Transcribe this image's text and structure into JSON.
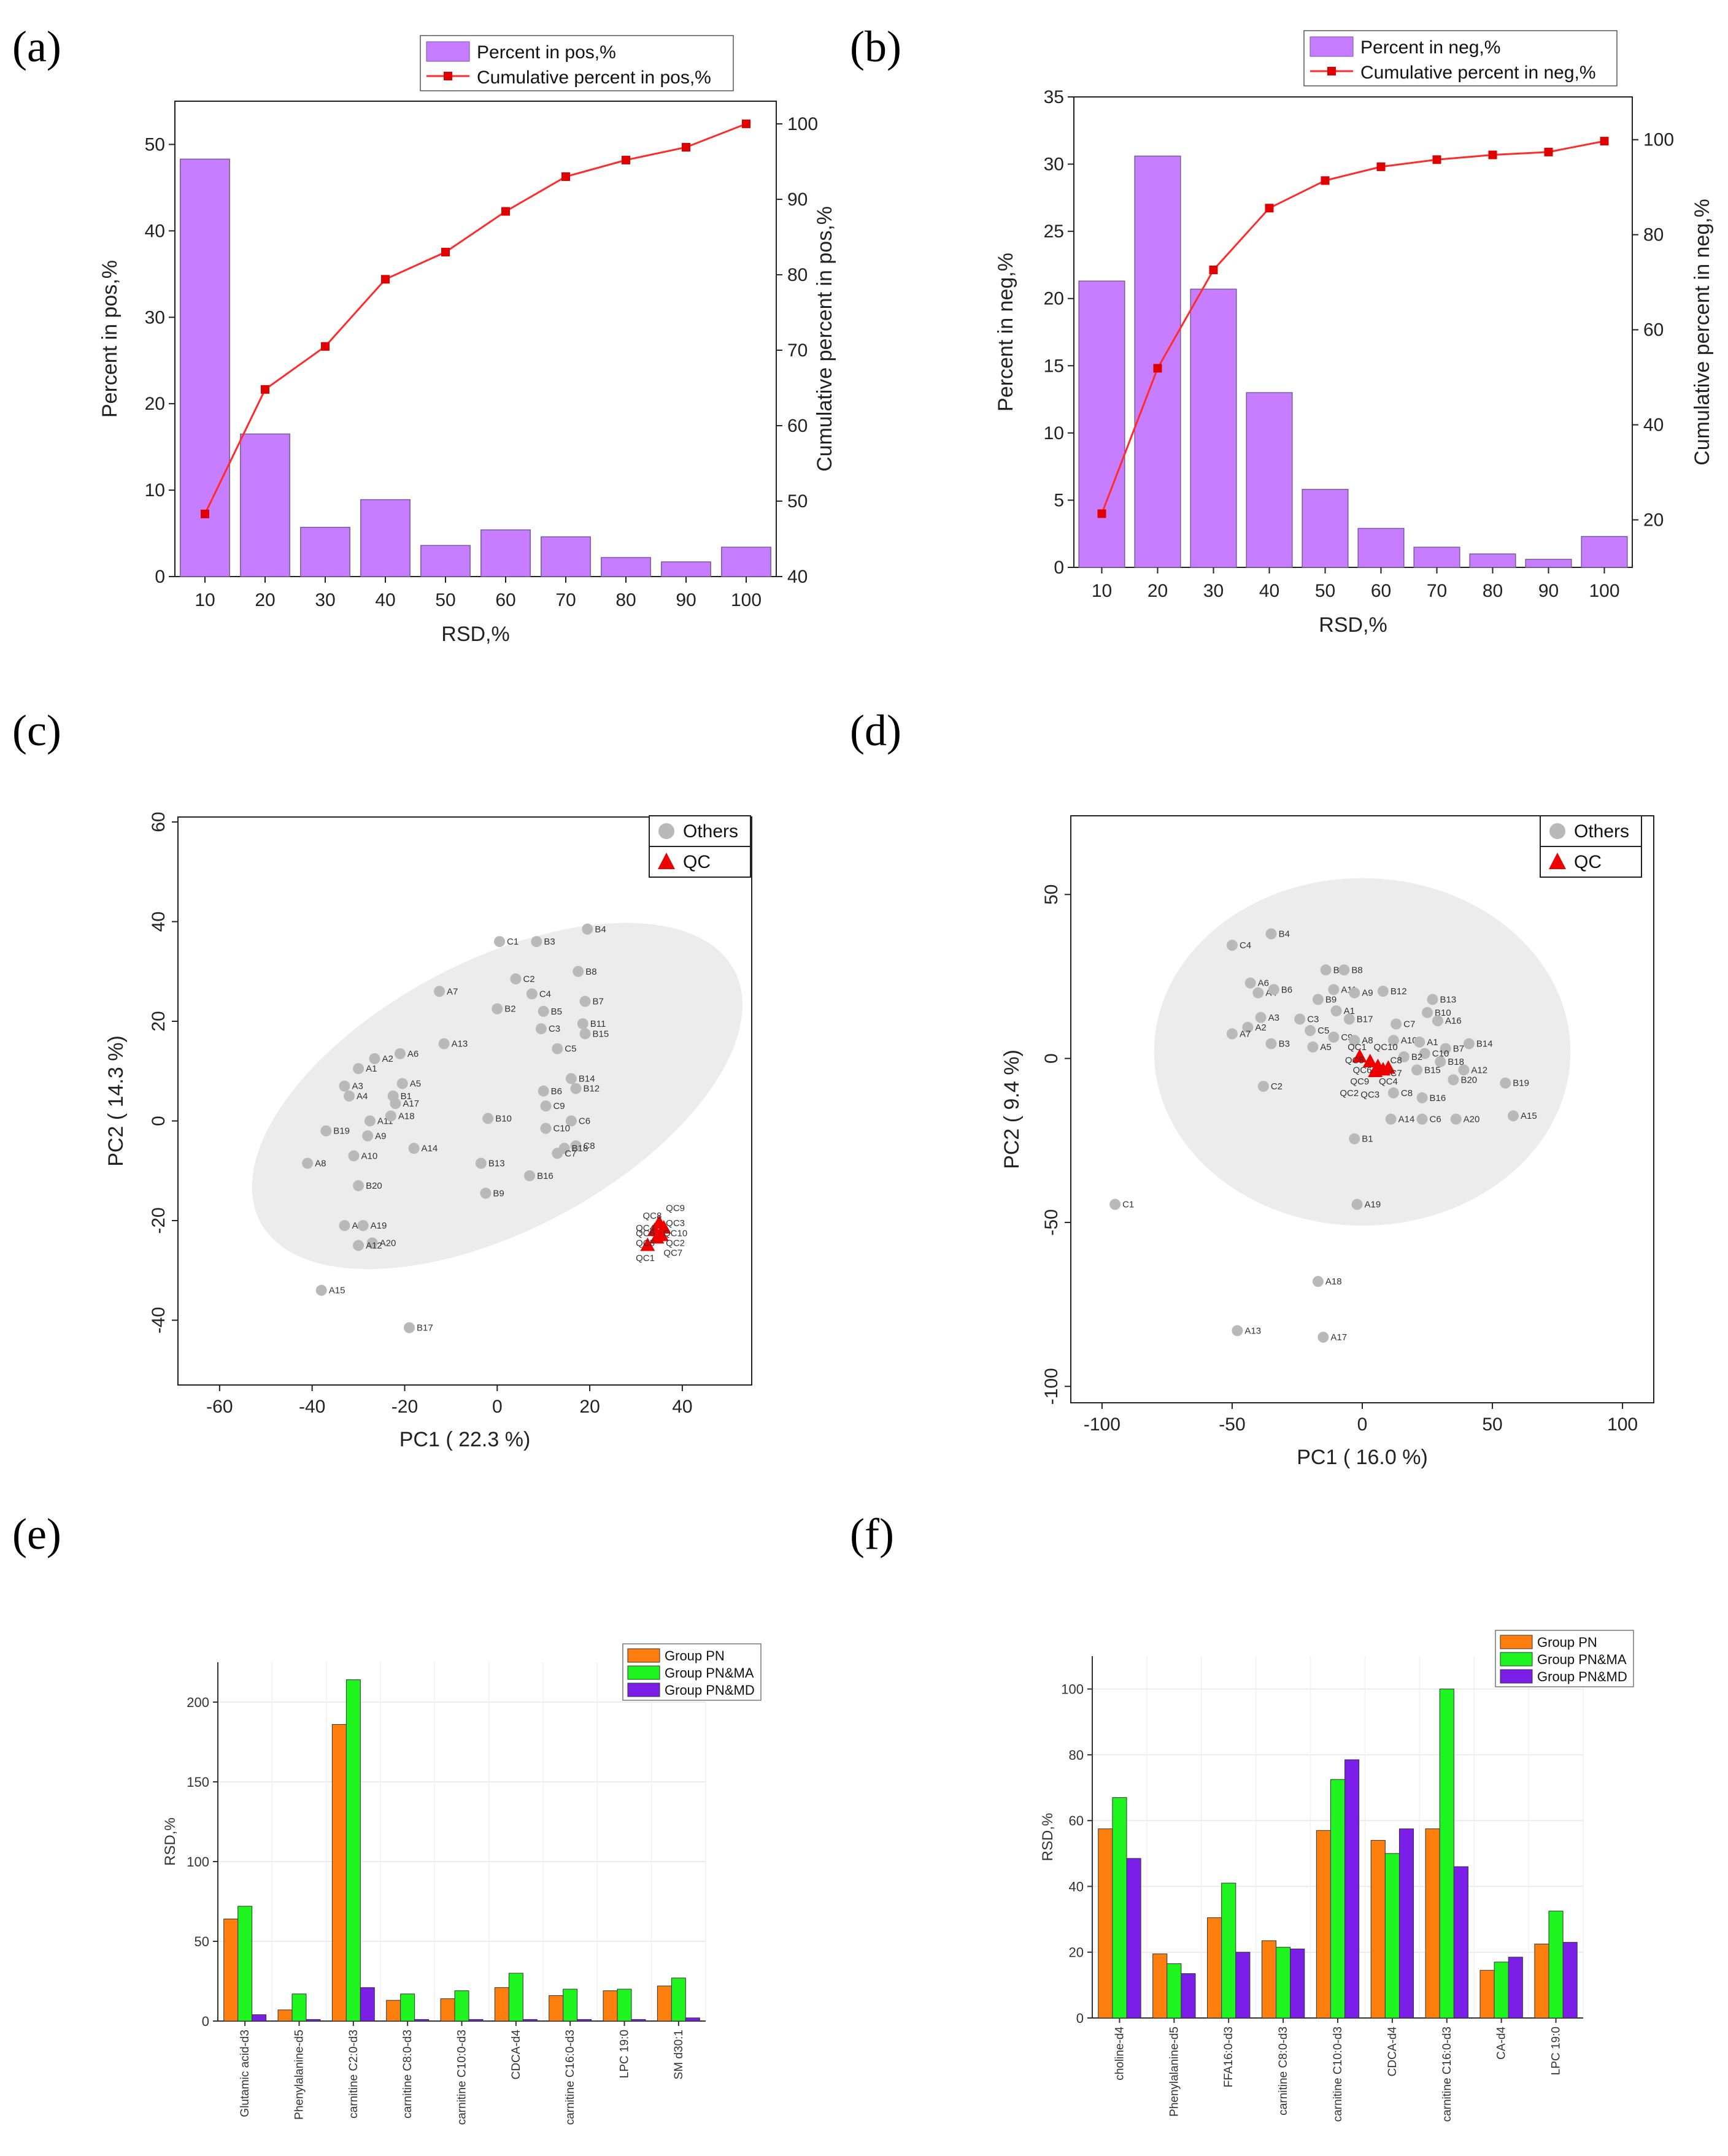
{
  "panel_labels": [
    "(a)",
    "(b)",
    "(c)",
    "(d)",
    "(e)",
    "(f)"
  ],
  "chart_data": [
    {
      "id": "a",
      "type": "bar",
      "categories": [
        "10",
        "20",
        "30",
        "40",
        "50",
        "60",
        "70",
        "80",
        "90",
        "100"
      ],
      "series": [
        {
          "name": "Percent in pos,%",
          "kind": "bar",
          "axis": "left",
          "color": "#c77dff",
          "values": [
            48.3,
            16.5,
            5.7,
            8.9,
            3.6,
            5.4,
            4.6,
            2.2,
            1.7,
            3.4
          ]
        },
        {
          "name": "Cumulative percent in pos,%",
          "kind": "line",
          "axis": "right",
          "color": "#ff2b2b",
          "values": [
            48.3,
            64.8,
            70.5,
            79.4,
            83.0,
            88.4,
            93.0,
            95.2,
            96.9,
            100
          ]
        }
      ],
      "xlabel": "RSD,%",
      "ylabel": "Percent in pos,%",
      "y2label": "Cumulative percent in pos,%",
      "ylim": [
        0,
        55
      ],
      "yticks": [
        0,
        10,
        20,
        30,
        40,
        50
      ],
      "y2lim": [
        40,
        103
      ],
      "y2ticks": [
        40,
        50,
        60,
        70,
        80,
        90,
        100
      ],
      "legend": "top-right"
    },
    {
      "id": "b",
      "type": "bar",
      "categories": [
        "10",
        "20",
        "30",
        "40",
        "50",
        "60",
        "70",
        "80",
        "90",
        "100"
      ],
      "series": [
        {
          "name": "Percent in neg,%",
          "kind": "bar",
          "axis": "left",
          "color": "#c77dff",
          "values": [
            21.3,
            30.6,
            20.7,
            13.0,
            5.8,
            2.9,
            1.5,
            1.0,
            0.6,
            2.3
          ]
        },
        {
          "name": "Cumulative percent in neg,%",
          "kind": "line",
          "axis": "right",
          "color": "#ff2b2b",
          "values": [
            21.3,
            51.9,
            72.6,
            85.6,
            91.4,
            94.3,
            95.8,
            96.8,
            97.4,
            99.7
          ]
        }
      ],
      "xlabel": "RSD,%",
      "ylabel": "Percent in neg,%",
      "y2label": "Cumulative percent in neg,%",
      "ylim": [
        0,
        35
      ],
      "yticks": [
        0,
        5,
        10,
        15,
        20,
        25,
        30,
        35
      ],
      "y2lim": [
        10,
        109
      ],
      "y2ticks": [
        20,
        40,
        60,
        80,
        100
      ],
      "legend": "top-right"
    },
    {
      "id": "c",
      "type": "scatter",
      "xlabel": "PC1 ( 22.3 %)",
      "ylabel": "PC2 ( 14.3 %)",
      "xlim": [
        -69,
        55
      ],
      "xticks": [
        -60,
        -40,
        -20,
        0,
        20,
        40
      ],
      "ylim": [
        -53,
        61
      ],
      "yticks": [
        -40,
        -20,
        0,
        20,
        40,
        60
      ],
      "legend_entries": [
        "Others",
        "QC"
      ],
      "ellipse": {
        "cx": 0,
        "cy": 5,
        "rx": 58,
        "ry": 27,
        "angle_deg": 28
      },
      "others": [
        {
          "label": "B4",
          "x": 19.5,
          "y": 38.5
        },
        {
          "label": "C1",
          "x": 0.5,
          "y": 36
        },
        {
          "label": "B3",
          "x": 8.5,
          "y": 36
        },
        {
          "label": "B8",
          "x": 17.5,
          "y": 30
        },
        {
          "label": "C2",
          "x": 4,
          "y": 28.5
        },
        {
          "label": "A7",
          "x": -12.5,
          "y": 26
        },
        {
          "label": "C4",
          "x": 7.5,
          "y": 25.5
        },
        {
          "label": "B7",
          "x": 19,
          "y": 24
        },
        {
          "label": "B2",
          "x": 0,
          "y": 22.5
        },
        {
          "label": "B5",
          "x": 10,
          "y": 22
        },
        {
          "label": "A13",
          "x": -11.5,
          "y": 15.5
        },
        {
          "label": "B11",
          "x": 18.5,
          "y": 19.5
        },
        {
          "label": "C3",
          "x": 9.5,
          "y": 18.5
        },
        {
          "label": "B15",
          "x": 19,
          "y": 17.5
        },
        {
          "label": "C5",
          "x": 13,
          "y": 14.5
        },
        {
          "label": "A2",
          "x": -26.5,
          "y": 12.5
        },
        {
          "label": "A6",
          "x": -21,
          "y": 13.5
        },
        {
          "label": "A1",
          "x": -30,
          "y": 10.5
        },
        {
          "label": "A3",
          "x": -33,
          "y": 7
        },
        {
          "label": "A5",
          "x": -20.5,
          "y": 7.5
        },
        {
          "label": "B14",
          "x": 16,
          "y": 8.5
        },
        {
          "label": "B6",
          "x": 10,
          "y": 6
        },
        {
          "label": "B12",
          "x": 17,
          "y": 6.5
        },
        {
          "label": "B1",
          "x": -22.5,
          "y": 5
        },
        {
          "label": "A4",
          "x": -32,
          "y": 5
        },
        {
          "label": "A17",
          "x": -22,
          "y": 3.5
        },
        {
          "label": "C9",
          "x": 10.5,
          "y": 3
        },
        {
          "label": "A11",
          "x": -27.5,
          "y": 0
        },
        {
          "label": "A18",
          "x": -23,
          "y": 1
        },
        {
          "label": "B10",
          "x": -2,
          "y": 0.5
        },
        {
          "label": "C6",
          "x": 16,
          "y": 0
        },
        {
          "label": "B19",
          "x": -37,
          "y": -2
        },
        {
          "label": "A9",
          "x": -28,
          "y": -3
        },
        {
          "label": "C10",
          "x": 10.5,
          "y": -1.5
        },
        {
          "label": "C8",
          "x": 17,
          "y": -5
        },
        {
          "label": "A14",
          "x": -18,
          "y": -5.5
        },
        {
          "label": "B18",
          "x": 14.5,
          "y": -5.5
        },
        {
          "label": "C7",
          "x": 13,
          "y": -6.5
        },
        {
          "label": "A10",
          "x": -31,
          "y": -7
        },
        {
          "label": "A8",
          "x": -41,
          "y": -8.5
        },
        {
          "label": "B13",
          "x": -3.5,
          "y": -8.5
        },
        {
          "label": "B16",
          "x": 7,
          "y": -11
        },
        {
          "label": "B20",
          "x": -30,
          "y": -13
        },
        {
          "label": "B9",
          "x": -2.5,
          "y": -14.5
        },
        {
          "label": "A16",
          "x": -33,
          "y": -21
        },
        {
          "label": "A19",
          "x": -29,
          "y": -21
        },
        {
          "label": "A20",
          "x": -27,
          "y": -24.5
        },
        {
          "label": "A12",
          "x": -30,
          "y": -25
        },
        {
          "label": "A15",
          "x": -38,
          "y": -34
        },
        {
          "label": "B17",
          "x": -19,
          "y": -41.5
        }
      ],
      "qc": [
        {
          "label": "QC9",
          "x": 38.5,
          "y": -17.5
        },
        {
          "label": "QC8",
          "x": 33.5,
          "y": -19
        },
        {
          "label": "QC3",
          "x": 38.5,
          "y": -20.5
        },
        {
          "label": "QC4",
          "x": 32,
          "y": -21.5
        },
        {
          "label": "QC6",
          "x": 32,
          "y": -22.5
        },
        {
          "label": "QC10",
          "x": 38.5,
          "y": -22.5
        },
        {
          "label": "QC5",
          "x": 32,
          "y": -24.5
        },
        {
          "label": "QC2",
          "x": 38.5,
          "y": -24.5
        },
        {
          "label": "QC7",
          "x": 38,
          "y": -26.5
        },
        {
          "label": "QC1",
          "x": 32,
          "y": -27.5
        }
      ],
      "qc_points": [
        [
          32.5,
          -25
        ],
        [
          34,
          -22
        ],
        [
          35,
          -20.5
        ],
        [
          35.5,
          -23
        ],
        [
          36,
          -21.5
        ],
        [
          34.5,
          -23.5
        ]
      ]
    },
    {
      "id": "d",
      "type": "scatter",
      "xlabel": "PC1 ( 16.0 %)",
      "ylabel": "PC2 ( 9.4 %)",
      "xlim": [
        -112,
        112
      ],
      "xticks": [
        -100,
        -50,
        0,
        50,
        100
      ],
      "ylim": [
        -105,
        74
      ],
      "yticks": [
        -100,
        -50,
        0,
        50
      ],
      "legend_entries": [
        "Others",
        "QC"
      ],
      "ellipse": {
        "cx": 0,
        "cy": 2,
        "rx": 80,
        "ry": 53,
        "angle_deg": 0
      },
      "others": [
        {
          "label": "C4",
          "x": -50,
          "y": 34.5
        },
        {
          "label": "B4",
          "x": -35,
          "y": 38
        },
        {
          "label": "B5",
          "x": -14,
          "y": 27
        },
        {
          "label": "B8",
          "x": -7,
          "y": 27
        },
        {
          "label": "A6",
          "x": -43,
          "y": 23
        },
        {
          "label": "A4",
          "x": -40,
          "y": 20
        },
        {
          "label": "B6",
          "x": -34,
          "y": 21
        },
        {
          "label": "A11",
          "x": -11,
          "y": 21
        },
        {
          "label": "A9",
          "x": -3,
          "y": 20
        },
        {
          "label": "B12",
          "x": 8,
          "y": 20.5
        },
        {
          "label": "B9",
          "x": -17,
          "y": 18
        },
        {
          "label": "B13",
          "x": 27,
          "y": 18
        },
        {
          "label": "A1",
          "x": -10,
          "y": 14.5
        },
        {
          "label": "B10",
          "x": 25,
          "y": 14
        },
        {
          "label": "A3",
          "x": -39,
          "y": 12.5
        },
        {
          "label": "C3",
          "x": -24,
          "y": 12
        },
        {
          "label": "B17",
          "x": -5,
          "y": 12
        },
        {
          "label": "A16",
          "x": 29,
          "y": 11.5
        },
        {
          "label": "C7",
          "x": 13,
          "y": 10.5
        },
        {
          "label": "A2",
          "x": -44,
          "y": 9.5
        },
        {
          "label": "C5",
          "x": -20,
          "y": 8.5
        },
        {
          "label": "A7",
          "x": -50,
          "y": 7.5
        },
        {
          "label": "C9",
          "x": -11,
          "y": 6.5
        },
        {
          "label": "A8",
          "x": -3,
          "y": 5.5
        },
        {
          "label": "A10",
          "x": 12,
          "y": 5.5
        },
        {
          "label": "A1",
          "x": 22,
          "y": 5
        },
        {
          "label": "B14",
          "x": 41,
          "y": 4.5
        },
        {
          "label": "B3",
          "x": -35,
          "y": 4.5
        },
        {
          "label": "A5",
          "x": -19,
          "y": 3.5
        },
        {
          "label": "B7",
          "x": 32,
          "y": 3
        },
        {
          "label": "C10",
          "x": 24,
          "y": 1.5
        },
        {
          "label": "B2",
          "x": 16,
          "y": 0.5
        },
        {
          "label": "B18",
          "x": 30,
          "y": -1
        },
        {
          "label": "A12",
          "x": 39,
          "y": -3.5
        },
        {
          "label": "B15",
          "x": 21,
          "y": -3.5
        },
        {
          "label": "B20",
          "x": 35,
          "y": -6.5
        },
        {
          "label": "B19",
          "x": 55,
          "y": -7.5
        },
        {
          "label": "C2",
          "x": -38,
          "y": -8.5
        },
        {
          "label": "C8",
          "x": 12,
          "y": -10.5
        },
        {
          "label": "B16",
          "x": 23,
          "y": -12
        },
        {
          "label": "A15",
          "x": 58,
          "y": -17.5
        },
        {
          "label": "A14",
          "x": 11,
          "y": -18.5
        },
        {
          "label": "C6",
          "x": 23,
          "y": -18.5
        },
        {
          "label": "A20",
          "x": 36,
          "y": -18.5
        },
        {
          "label": "B1",
          "x": -3,
          "y": -24.5
        },
        {
          "label": "C1",
          "x": -95,
          "y": -44.5
        },
        {
          "label": "A19",
          "x": -2,
          "y": -44.5
        },
        {
          "label": "A18",
          "x": -17,
          "y": -68
        },
        {
          "label": "A13",
          "x": -48,
          "y": -83
        },
        {
          "label": "A17",
          "x": -15,
          "y": -85
        }
      ],
      "qc": [
        {
          "label": "QC1",
          "x": -2,
          "y": 3.5
        },
        {
          "label": "QC10",
          "x": 9,
          "y": 3.5
        },
        {
          "label": "QC5",
          "x": -3,
          "y": -0.5
        },
        {
          "label": "C8",
          "x": 13,
          "y": -0.5
        },
        {
          "label": "QC6",
          "x": 0,
          "y": -3.5
        },
        {
          "label": "C7",
          "x": 13,
          "y": -4.5
        },
        {
          "label": "QC9",
          "x": -1,
          "y": -7
        },
        {
          "label": "QC4",
          "x": 10,
          "y": -7
        },
        {
          "label": "QC2",
          "x": -5,
          "y": -10.5
        },
        {
          "label": "QC3",
          "x": 3,
          "y": -11
        }
      ],
      "qc_points": [
        [
          -1,
          0.5
        ],
        [
          3,
          -1
        ],
        [
          6,
          -2.5
        ],
        [
          8,
          -3.5
        ],
        [
          10,
          -3
        ],
        [
          5,
          -4
        ]
      ]
    },
    {
      "id": "e",
      "type": "bar",
      "categories": [
        "Glutamic acid-d3",
        "Phenylalanine-d5",
        "carnitine C2:0-d3",
        "carnitine C8:0-d3",
        "carnitine C10:0-d3",
        "CDCA-d4",
        "carnitine C16:0-d3",
        "LPC 19:0",
        "SM d30:1"
      ],
      "series": [
        {
          "name": "Group PN",
          "color": "#ff7f0e",
          "values": [
            64,
            7,
            186,
            13,
            14,
            21,
            16,
            19,
            22
          ]
        },
        {
          "name": "Group PN&MA",
          "color": "#1ff51f",
          "values": [
            72,
            17,
            214,
            17,
            19,
            30,
            20,
            20,
            27
          ]
        },
        {
          "name": "Group PN&MD",
          "color": "#7b1fe8",
          "values": [
            4,
            1,
            21,
            1,
            1,
            1,
            1,
            1,
            2
          ]
        }
      ],
      "xlabel": "",
      "ylabel": "RSD,%",
      "ylim": [
        0,
        225
      ],
      "yticks": [
        0,
        50,
        100,
        150,
        200
      ],
      "legend": "top-right"
    },
    {
      "id": "f",
      "type": "bar",
      "categories": [
        "choline-d4",
        "Phenylalanine-d5",
        "FFA16:0-d3",
        "carnitine C8:0-d3",
        "carnitine C10:0-d3",
        "CDCA-d4",
        "carnitine C16:0-d3",
        "CA-d4",
        "LPC 19:0"
      ],
      "series": [
        {
          "name": "Group PN",
          "color": "#ff7f0e",
          "values": [
            57.5,
            19.5,
            30.5,
            23.5,
            57,
            54,
            57.5,
            14.5,
            22.5
          ]
        },
        {
          "name": "Group PN&MA",
          "color": "#1ff51f",
          "values": [
            67,
            16.5,
            41,
            21.5,
            72.5,
            50,
            100,
            17,
            32.5
          ]
        },
        {
          "name": "Group PN&MD",
          "color": "#7b1fe8",
          "values": [
            48.5,
            13.5,
            20,
            21,
            78.5,
            57.5,
            46,
            18.5,
            23
          ]
        }
      ],
      "xlabel": "",
      "ylabel": "RSD,%",
      "ylim": [
        0,
        110
      ],
      "yticks": [
        0,
        20,
        40,
        60,
        80,
        100
      ],
      "legend": "top-right"
    }
  ]
}
